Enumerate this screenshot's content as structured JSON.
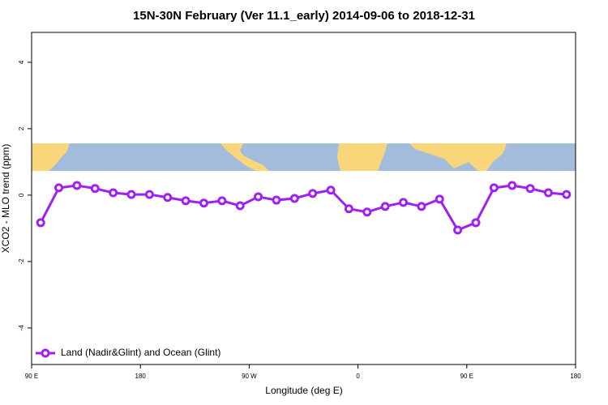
{
  "chart_data": {
    "type": "line",
    "title": "15N-30N February (Ver 11.1_early)   2014-09-06 to 2018-12-31",
    "x_label": "Longitude (deg E)",
    "y_label": "XCO2 - MLO trend (ppm)",
    "x": [
      97.5,
      112.5,
      127.5,
      142.5,
      157.5,
      172.5,
      187.5,
      202.5,
      217.5,
      232.5,
      247.5,
      262.5,
      277.5,
      292.5,
      307.5,
      322.5,
      337.5,
      352.5,
      367.5,
      382.5,
      397.5,
      412.5,
      427.5,
      442.5,
      457.5,
      472.5,
      487.5,
      502.5,
      517.5,
      532.5
    ],
    "series": [
      {
        "name": "Land (Nadir&Glint) and Ocean (Glint)",
        "color": "#a020f0",
        "values": [
          -0.83,
          0.22,
          0.29,
          0.2,
          0.07,
          0.02,
          0.02,
          -0.07,
          -0.17,
          -0.24,
          -0.17,
          -0.32,
          -0.05,
          -0.15,
          -0.1,
          0.05,
          0.15,
          -0.41,
          -0.51,
          -0.34,
          -0.22,
          -0.34,
          -0.12,
          -1.05,
          -0.83,
          0.22,
          0.29,
          0.2,
          0.07,
          0.02
        ]
      }
    ],
    "xlim": [
      90,
      540
    ],
    "xticks": [
      {
        "value": 90,
        "label": "90 E"
      },
      {
        "value": 180,
        "label": "180"
      },
      {
        "value": 270,
        "label": "90 W"
      },
      {
        "value": 360,
        "label": "0"
      },
      {
        "value": 450,
        "label": "90 E"
      },
      {
        "value": 540,
        "label": "180"
      }
    ],
    "ylim": [
      -5.1,
      4.9
    ],
    "yticks": [
      -4,
      -2,
      0,
      2,
      4
    ],
    "legend": "bottom-left"
  }
}
